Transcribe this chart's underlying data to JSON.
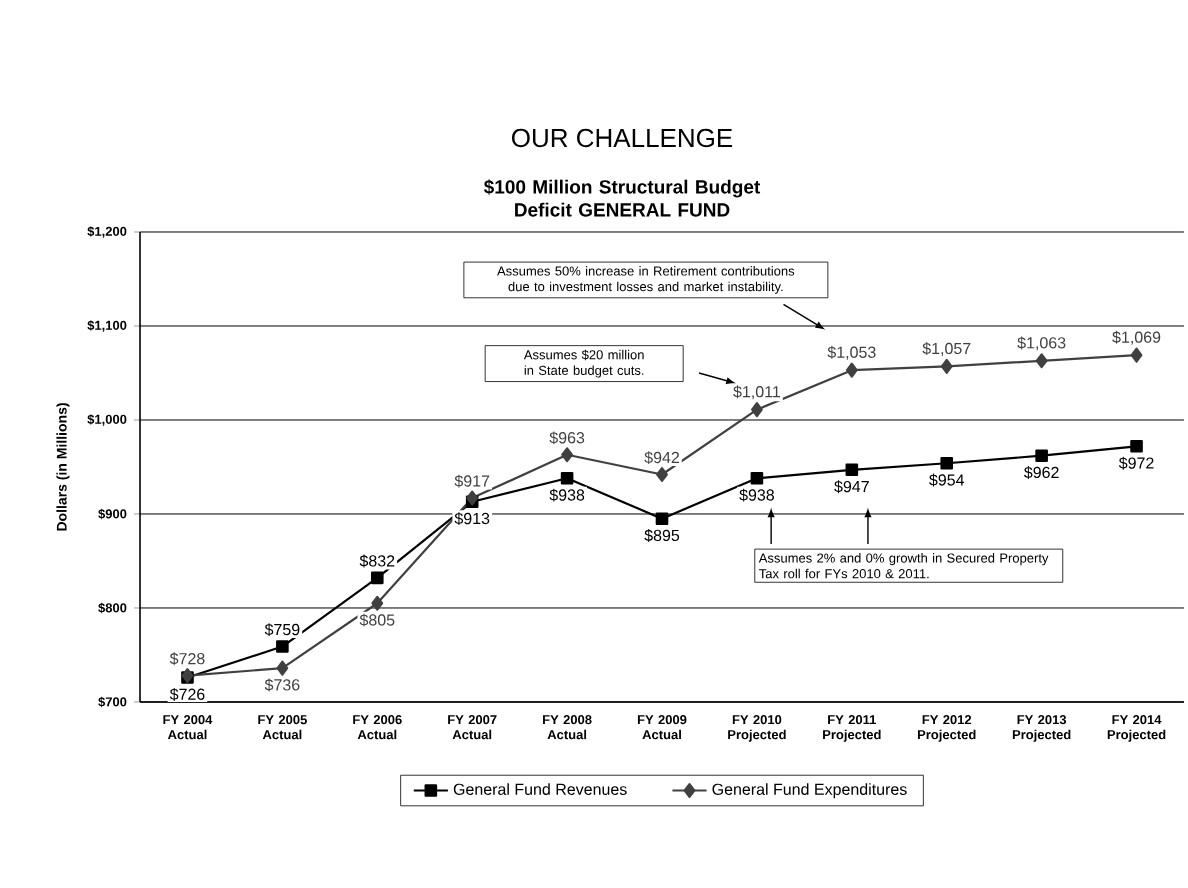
{
  "chart_data": {
    "type": "line",
    "title": "OUR CHALLENGE",
    "subtitle": "$100 Million Structural Budget Deficit GENERAL FUND",
    "ylabel": "Dollars (in Millions)",
    "categories": [
      "FY 2004 Actual",
      "FY 2005 Actual",
      "FY 2006 Actual",
      "FY 2007 Actual",
      "FY 2008 Actual",
      "FY 2009 Actual",
      "FY 2010 Projected",
      "FY 2011 Projected",
      "FY 2012 Projected",
      "FY 2013 Projected",
      "FY 2014 Projected"
    ],
    "series": [
      {
        "name": "General Fund Revenues",
        "color": "#000000",
        "marker": "square",
        "values": [
          726,
          759,
          832,
          913,
          938,
          895,
          938,
          947,
          954,
          962,
          972
        ],
        "value_labels": [
          "$726",
          "$759",
          "$832",
          "$913",
          "$938",
          "$895",
          "$938",
          "$947",
          "$954",
          "$962",
          "$972"
        ]
      },
      {
        "name": "General Fund Expenditures",
        "color": "#404040",
        "marker": "diamond",
        "values": [
          728,
          736,
          805,
          917,
          963,
          942,
          1011,
          1053,
          1057,
          1063,
          1069
        ],
        "value_labels": [
          "$728",
          "$736",
          "$805",
          "$917",
          "$963",
          "$942",
          "$1,011",
          "$1,053",
          "$1,057",
          "$1,063",
          "$1,069"
        ]
      }
    ],
    "ylim": [
      700,
      1200
    ],
    "yticks": [
      {
        "value": 700,
        "label": "$700"
      },
      {
        "value": 800,
        "label": "$800"
      },
      {
        "value": 900,
        "label": "$900"
      },
      {
        "value": 1000,
        "label": "$1,000"
      },
      {
        "value": 1100,
        "label": "$1,100"
      },
      {
        "value": 1200,
        "label": "$1,200"
      }
    ],
    "grid": "y",
    "legend": "bottom",
    "annotations": [
      "Assumes 50% increase in Retirement contributions due to investment losses and market instability.",
      "Assumes $20 million in State budget cuts.",
      "Assumes 2% and 0% growth in Secured Property Tax roll for FYs 2010 & 2011."
    ]
  }
}
